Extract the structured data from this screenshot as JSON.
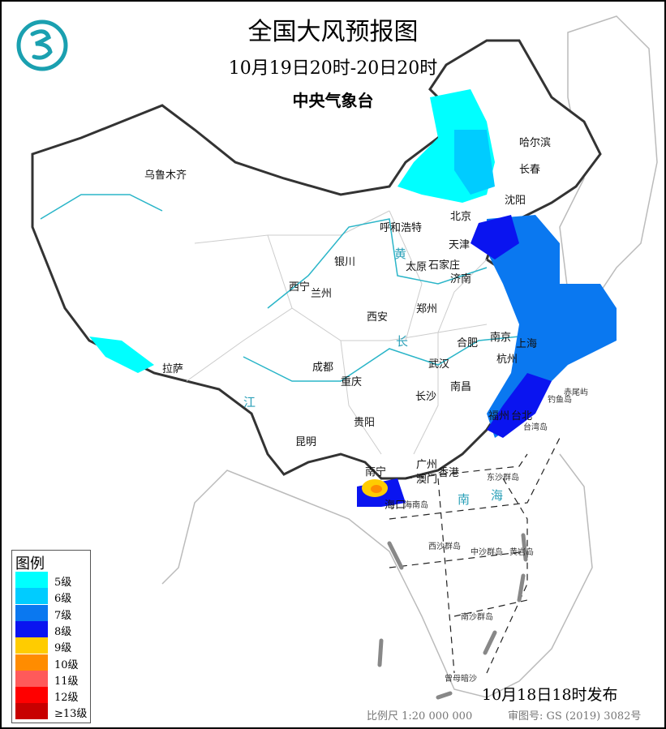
{
  "header": {
    "title": "全国大风预报图",
    "period": "10月19日20时-20日20时",
    "issuer": "中央气象台"
  },
  "cities": [
    "乌鲁木齐",
    "哈尔滨",
    "长春",
    "沈阳",
    "北京",
    "天津",
    "呼和浩特",
    "石家庄",
    "太原",
    "济南",
    "银川",
    "西宁",
    "兰州",
    "西安",
    "郑州",
    "合肥",
    "南京",
    "上海",
    "杭州",
    "武汉",
    "南昌",
    "长沙",
    "成都",
    "重庆",
    "贵阳",
    "昆明",
    "拉萨",
    "南宁",
    "广州",
    "澳门",
    "香港",
    "海口",
    "福州",
    "台北"
  ],
  "islands": [
    "台湾岛",
    "海南岛",
    "东沙群岛",
    "西沙群岛",
    "中沙群岛",
    "黄岩岛",
    "南沙群岛",
    "曾母暗沙",
    "钓鱼岛",
    "赤尾屿"
  ],
  "water_labels": [
    "黄",
    "长",
    "江",
    "南",
    "海"
  ],
  "legend": {
    "title": "图例",
    "items": [
      {
        "label": "5级",
        "color": "#00ffff"
      },
      {
        "label": "6级",
        "color": "#00ccff"
      },
      {
        "label": "7级",
        "color": "#0a78f0"
      },
      {
        "label": "8级",
        "color": "#0a14f0"
      },
      {
        "label": "9级",
        "color": "#ffcc00"
      },
      {
        "label": "10级",
        "color": "#ff8c00"
      },
      {
        "label": "11级",
        "color": "#ff5a5a"
      },
      {
        "label": "12级",
        "color": "#ff0000"
      },
      {
        "label": "≥13级",
        "color": "#c80000"
      }
    ]
  },
  "footer": {
    "issued": "10月18日18时发布",
    "scale": "比例尺 1:20 000 000",
    "review_no": "审图号: GS (2019) 3082号"
  }
}
